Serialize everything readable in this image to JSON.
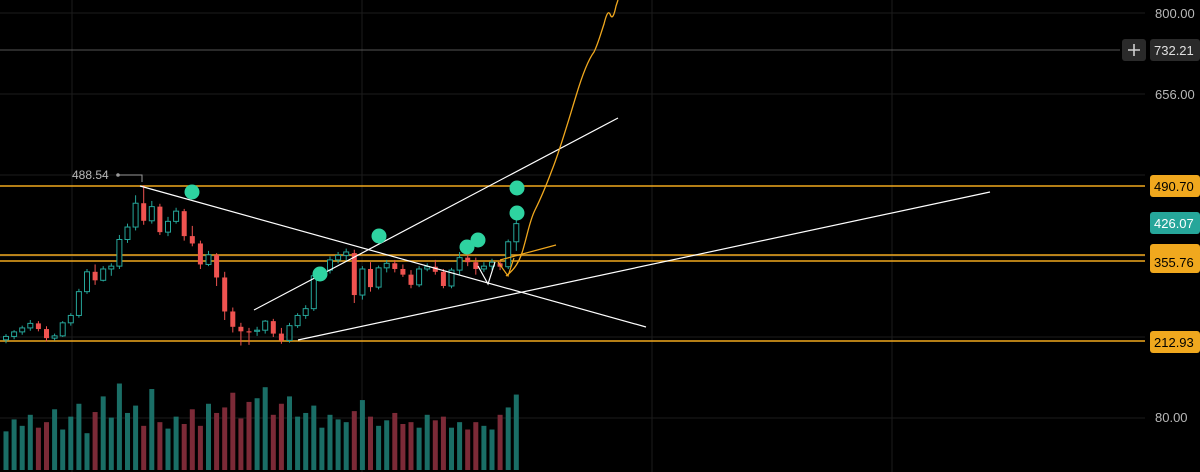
{
  "chart_data": {
    "type": "candlestick",
    "y_axis": {
      "position": "right",
      "tick_labels": [
        {
          "value": 800,
          "text": "800.00"
        },
        {
          "value": 656,
          "text": "656.00"
        },
        {
          "value": 80,
          "text": "80.00"
        }
      ]
    },
    "price_levels": [
      {
        "value": 490.7,
        "text": "490.70",
        "color": "#f0a81e"
      },
      {
        "value": 212.93,
        "text": "212.93",
        "color": "#f0a81e"
      }
    ],
    "price_tags": [
      {
        "value": 732.21,
        "text": "732.21",
        "tag_color": "#2a2a2a",
        "text_color": "#e0e0e0",
        "guide_color": "#555555"
      },
      {
        "value": 426.07,
        "text": "426.07",
        "tag_color": "#26a69a",
        "text_color": "#ffffff"
      },
      {
        "value": 355.76,
        "text": "355.76",
        "tag_color": "#f0a81e",
        "text_color": "#000000"
      }
    ],
    "annotations": [
      {
        "text": "488.54",
        "price": 488.54
      }
    ],
    "colors": {
      "up": "#26a69a",
      "down": "#ef5350",
      "level": "#f0a81e",
      "trendline": "#ffffff",
      "projection": "#f0a81e",
      "signal": "#2ed3a0",
      "grid": "#1c1c1c"
    },
    "candles": [
      [
        215,
        225,
        209,
        221
      ],
      [
        221,
        232,
        216,
        229
      ],
      [
        229,
        240,
        224,
        236
      ],
      [
        236,
        250,
        231,
        244
      ],
      [
        244,
        248,
        230,
        234
      ],
      [
        234,
        239,
        212,
        218
      ],
      [
        218,
        226,
        214,
        222
      ],
      [
        222,
        248,
        220,
        245
      ],
      [
        245,
        262,
        240,
        258
      ],
      [
        258,
        305,
        254,
        300
      ],
      [
        300,
        340,
        296,
        335
      ],
      [
        335,
        348,
        312,
        320
      ],
      [
        320,
        345,
        318,
        340
      ],
      [
        340,
        350,
        328,
        345
      ],
      [
        345,
        400,
        340,
        392
      ],
      [
        392,
        420,
        386,
        414
      ],
      [
        414,
        470,
        408,
        456
      ],
      [
        456,
        488,
        418,
        425
      ],
      [
        425,
        460,
        420,
        450
      ],
      [
        450,
        455,
        400,
        405
      ],
      [
        405,
        432,
        398,
        424
      ],
      [
        424,
        448,
        420,
        442
      ],
      [
        442,
        446,
        390,
        398
      ],
      [
        398,
        416,
        380,
        385
      ],
      [
        385,
        390,
        340,
        348
      ],
      [
        348,
        372,
        345,
        365
      ],
      [
        365,
        368,
        310,
        325
      ],
      [
        325,
        335,
        250,
        265
      ],
      [
        265,
        272,
        228,
        238
      ],
      [
        238,
        245,
        205,
        230
      ],
      [
        230,
        236,
        206,
        228
      ],
      [
        230,
        238,
        222,
        232
      ],
      [
        232,
        250,
        226,
        248
      ],
      [
        248,
        252,
        220,
        226
      ],
      [
        226,
        236,
        208,
        214
      ],
      [
        214,
        245,
        210,
        240
      ],
      [
        240,
        262,
        236,
        258
      ],
      [
        258,
        276,
        252,
        270
      ],
      [
        270,
        330,
        266,
        328
      ],
      [
        328,
        344,
        320,
        338
      ],
      [
        338,
        362,
        332,
        356
      ],
      [
        356,
        370,
        350,
        364
      ],
      [
        364,
        376,
        355,
        370
      ],
      [
        368,
        374,
        280,
        294
      ],
      [
        294,
        345,
        286,
        340
      ],
      [
        340,
        352,
        300,
        308
      ],
      [
        308,
        346,
        304,
        342
      ],
      [
        342,
        356,
        334,
        350
      ],
      [
        350,
        356,
        334,
        340
      ],
      [
        340,
        348,
        326,
        330
      ],
      [
        330,
        338,
        306,
        312
      ],
      [
        312,
        345,
        308,
        340
      ],
      [
        340,
        350,
        336,
        344
      ],
      [
        344,
        356,
        330,
        335
      ],
      [
        335,
        340,
        306,
        310
      ],
      [
        310,
        342,
        306,
        338
      ],
      [
        338,
        370,
        330,
        360
      ],
      [
        360,
        372,
        345,
        352
      ],
      [
        352,
        360,
        330,
        340
      ],
      [
        340,
        352,
        335,
        345
      ],
      [
        345,
        358,
        338,
        352
      ],
      [
        350,
        354,
        338,
        344
      ],
      [
        344,
        392,
        340,
        388
      ],
      [
        388,
        428,
        372,
        420
      ]
    ],
    "volumes": [
      42,
      55,
      48,
      60,
      46,
      52,
      66,
      44,
      58,
      72,
      40,
      63,
      80,
      57,
      94,
      62,
      70,
      48,
      88,
      52,
      45,
      58,
      50,
      66,
      48,
      72,
      62,
      68,
      84,
      56,
      74,
      78,
      90,
      60,
      72,
      80,
      58,
      62,
      70,
      46,
      60,
      55,
      52,
      64,
      76,
      58,
      48,
      54,
      62,
      50,
      52,
      46,
      60,
      54,
      58,
      46,
      52,
      44,
      52,
      48,
      44,
      60,
      68,
      82
    ]
  }
}
